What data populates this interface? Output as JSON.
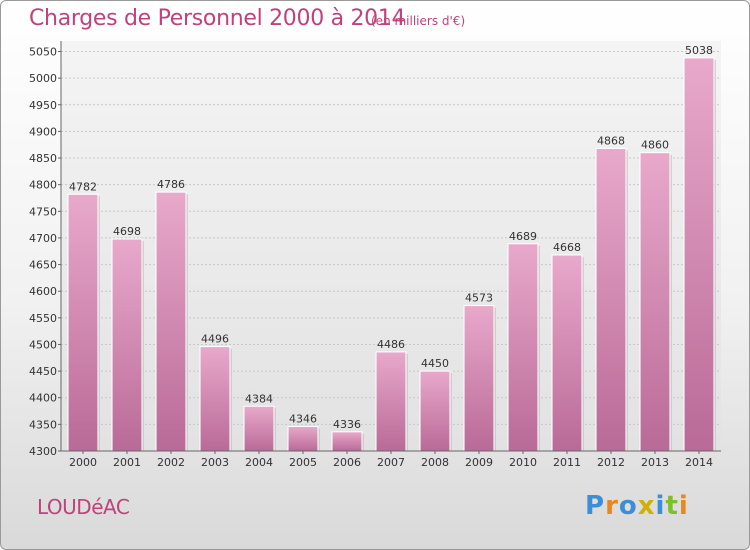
{
  "chart_data": {
    "type": "bar",
    "title": "Charges de Personnel 2000 à 2014",
    "subtitle": "(en milliers d'€)",
    "categories": [
      "2000",
      "2001",
      "2002",
      "2003",
      "2004",
      "2005",
      "2006",
      "2007",
      "2008",
      "2009",
      "2010",
      "2011",
      "2012",
      "2013",
      "2014"
    ],
    "values": [
      4782,
      4698,
      4786,
      4496,
      4384,
      4346,
      4336,
      4486,
      4450,
      4573,
      4689,
      4668,
      4868,
      4860,
      5038
    ],
    "ylim": [
      4300,
      5050
    ],
    "yticks": [
      4300,
      4350,
      4400,
      4450,
      4500,
      4550,
      4600,
      4650,
      4700,
      4750,
      4800,
      4850,
      4900,
      4950,
      5000,
      5050
    ],
    "grid": true,
    "bar_color": "#d98db5"
  },
  "footer": {
    "location": "LOUDéAC",
    "logo_text": "Proxiti",
    "logo_colors": [
      "#3a8fd6",
      "#e8871f",
      "#3a8fd6",
      "#d0b000",
      "#3a8fd6",
      "#7fbf2a",
      "#e8871f"
    ]
  }
}
